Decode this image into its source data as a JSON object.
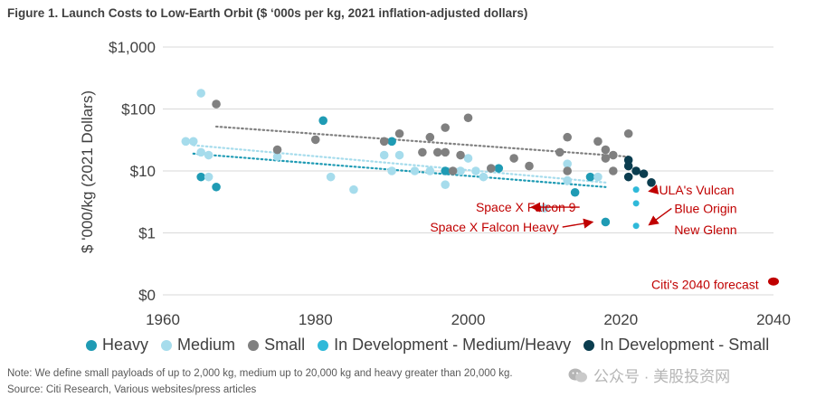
{
  "header": {
    "title": "Figure 1. Launch Costs to Low-Earth Orbit ($ ‘000s per kg, 2021 inflation-adjusted dollars)"
  },
  "footer": {
    "note": "Note: We define small payloads of up to 2,000 kg, medium up to 20,000 kg and heavy greater than 20,000 kg.",
    "source": "Source: Citi Research, Various websites/press articles",
    "watermark": "公众号 · 美股投资网"
  },
  "colors": {
    "heavy": "#1f9bb4",
    "medium": "#a6dcec",
    "small": "#808080",
    "dev_medium_heavy": "#2fb9d9",
    "dev_small": "#0b3d4f",
    "forecast": "#c00000",
    "annotation": "#c00000",
    "grid": "#d9d9d9"
  },
  "chart_data": {
    "type": "scatter",
    "title": "Figure 1. Launch Costs to Low-Earth Orbit ($ ‘000s per kg, 2021 inflation-adjusted dollars)",
    "xlabel": "",
    "ylabel": "$ '000/kg (2021 Dollars)",
    "xlim": [
      1960,
      2040
    ],
    "ylim": [
      0.1,
      1000
    ],
    "y_scale": "log",
    "x_ticks": [
      1960,
      1980,
      2000,
      2020,
      2040
    ],
    "y_ticks": [
      {
        "value": 0.1,
        "label": "$0"
      },
      {
        "value": 1,
        "label": "$1"
      },
      {
        "value": 10,
        "label": "$10"
      },
      {
        "value": 100,
        "label": "$100"
      },
      {
        "value": 1000,
        "label": "$1,000"
      }
    ],
    "grid": "horizontal",
    "legend_position": "bottom",
    "series": [
      {
        "name": "Heavy",
        "color": "#1f9bb4",
        "points": [
          [
            1965,
            8
          ],
          [
            1967,
            5.5
          ],
          [
            1981,
            65
          ],
          [
            1990,
            30
          ],
          [
            1997,
            10
          ],
          [
            2004,
            11
          ],
          [
            2014,
            4.5
          ],
          [
            2016,
            8
          ],
          [
            2018,
            1.5
          ]
        ]
      },
      {
        "name": "Medium",
        "color": "#a6dcec",
        "points": [
          [
            1963,
            30
          ],
          [
            1964,
            30
          ],
          [
            1965,
            180
          ],
          [
            1965,
            20
          ],
          [
            1966,
            18
          ],
          [
            1966,
            8
          ],
          [
            1975,
            17
          ],
          [
            1982,
            8
          ],
          [
            1985,
            5
          ],
          [
            1989,
            18
          ],
          [
            1990,
            10
          ],
          [
            1991,
            18
          ],
          [
            1993,
            10
          ],
          [
            1995,
            10
          ],
          [
            1997,
            6
          ],
          [
            1999,
            10
          ],
          [
            2000,
            16
          ],
          [
            2001,
            10
          ],
          [
            2002,
            8
          ],
          [
            2003,
            11
          ],
          [
            2010,
            2.5
          ],
          [
            2013,
            13
          ],
          [
            2013,
            7
          ],
          [
            2017,
            8
          ]
        ]
      },
      {
        "name": "Small",
        "color": "#808080",
        "points": [
          [
            1967,
            120
          ],
          [
            1975,
            22
          ],
          [
            1980,
            32
          ],
          [
            1989,
            30
          ],
          [
            1991,
            40
          ],
          [
            1994,
            20
          ],
          [
            1995,
            35
          ],
          [
            1996,
            20
          ],
          [
            1997,
            50
          ],
          [
            1997,
            20
          ],
          [
            1998,
            10
          ],
          [
            1999,
            18
          ],
          [
            2000,
            72
          ],
          [
            2003,
            11
          ],
          [
            2006,
            16
          ],
          [
            2008,
            12
          ],
          [
            2012,
            20
          ],
          [
            2013,
            35
          ],
          [
            2013,
            10
          ],
          [
            2017,
            30
          ],
          [
            2018,
            22
          ],
          [
            2018,
            16
          ],
          [
            2019,
            18
          ],
          [
            2019,
            10
          ],
          [
            2021,
            40
          ]
        ]
      },
      {
        "name": "In Development - Medium/Heavy",
        "color": "#2fb9d9",
        "points": [
          [
            2022,
            5
          ],
          [
            2022,
            3
          ],
          [
            2022,
            1.3
          ]
        ]
      },
      {
        "name": "In Development - Small",
        "color": "#0b3d4f",
        "points": [
          [
            2021,
            15
          ],
          [
            2021,
            12
          ],
          [
            2021,
            8
          ],
          [
            2022,
            10
          ],
          [
            2023,
            9
          ],
          [
            2024,
            6.5
          ]
        ]
      },
      {
        "name": "Citi's 2040 forecast",
        "color": "#c00000",
        "points": [
          [
            2040,
            0.13
          ]
        ]
      }
    ],
    "trendlines": [
      {
        "series": "Small",
        "color": "#808080",
        "x": [
          1967,
          2021
        ],
        "y": [
          52,
          17
        ]
      },
      {
        "series": "Medium",
        "color": "#a6dcec",
        "x": [
          1964,
          2018
        ],
        "y": [
          26,
          6.5
        ]
      },
      {
        "series": "Heavy",
        "color": "#1f9bb4",
        "x": [
          1964,
          2018
        ],
        "y": [
          19,
          5.5
        ]
      }
    ],
    "annotations": [
      {
        "text": "Space X Falcon 9",
        "x": 2001,
        "y": 2.2,
        "arrow_to": [
          2009,
          2.6
        ]
      },
      {
        "text": "Space X Falcon Heavy",
        "x": 1995,
        "y": 1.05,
        "arrow_to": [
          2017,
          1.5
        ]
      },
      {
        "text": "ULA's Vulcan",
        "x": 2025,
        "y": 4.2,
        "arrow_to": [
          2023,
          4.7
        ]
      },
      {
        "text": "Blue Origin",
        "x": 2027,
        "y": 2.1,
        "arrow_to": [
          2023,
          1.35
        ]
      },
      {
        "text": "New Glenn",
        "x": 2027,
        "y": 0.95
      },
      {
        "text": "Citi's 2040 forecast",
        "x": 2024,
        "y": 0.125
      }
    ]
  }
}
